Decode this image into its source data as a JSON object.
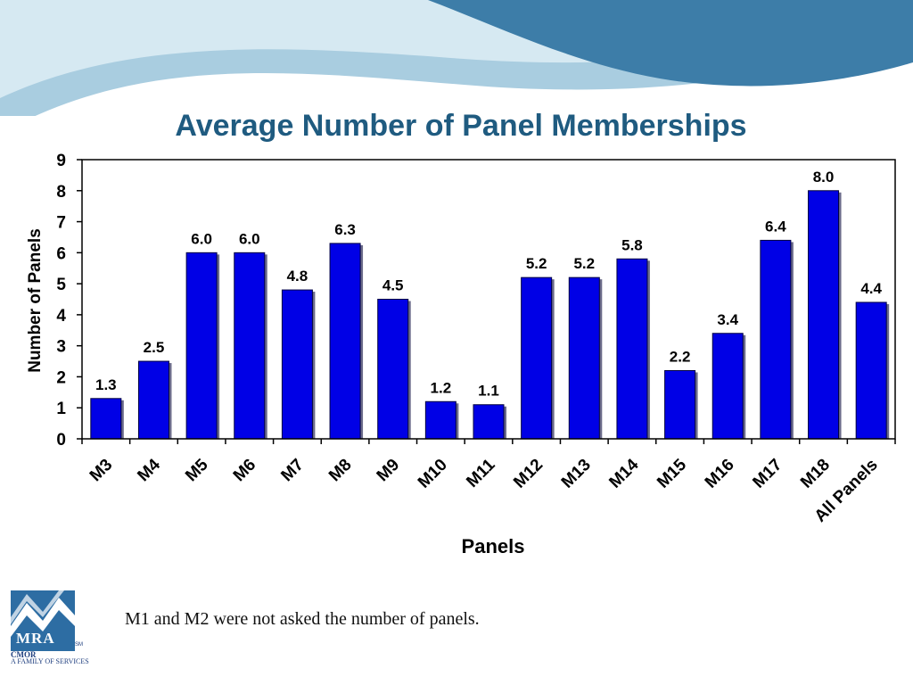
{
  "slide": {
    "title": "Average Number of Panel Memberships",
    "footnote": "M1 and M2 were not asked the number of panels."
  },
  "logo": {
    "name": "MRA",
    "tagline": "CMOR",
    "sub": "A FAMILY OF SERVICES",
    "mark": "SM"
  },
  "colors": {
    "bar": "#0000e6",
    "title": "#1f5b80",
    "wave_dark": "#3d7da8",
    "wave_light": "#a9cde0"
  },
  "chart_data": {
    "type": "bar",
    "title": "",
    "xlabel": "Panels",
    "ylabel": "Number of Panels",
    "ylim": [
      0,
      9
    ],
    "yticks": [
      "0",
      "1",
      "2",
      "3",
      "4",
      "5",
      "6",
      "7",
      "8",
      "9"
    ],
    "categories": [
      "M3",
      "M4",
      "M5",
      "M6",
      "M7",
      "M8",
      "M9",
      "M10",
      "M11",
      "M12",
      "M13",
      "M14",
      "M15",
      "M16",
      "M17",
      "M18",
      "All Panels"
    ],
    "values": [
      1.3,
      2.5,
      6.0,
      6.0,
      4.8,
      6.3,
      4.5,
      1.2,
      1.1,
      5.2,
      5.2,
      5.8,
      2.2,
      3.4,
      6.4,
      8.0,
      4.4
    ],
    "labels": [
      "1.3",
      "2.5",
      "6.0",
      "6.0",
      "4.8",
      "6.3",
      "4.5",
      "1.2",
      "1.1",
      "5.2",
      "5.2",
      "5.8",
      "2.2",
      "3.4",
      "6.4",
      "8.0",
      "4.4"
    ],
    "grid": false,
    "legend": "none"
  }
}
